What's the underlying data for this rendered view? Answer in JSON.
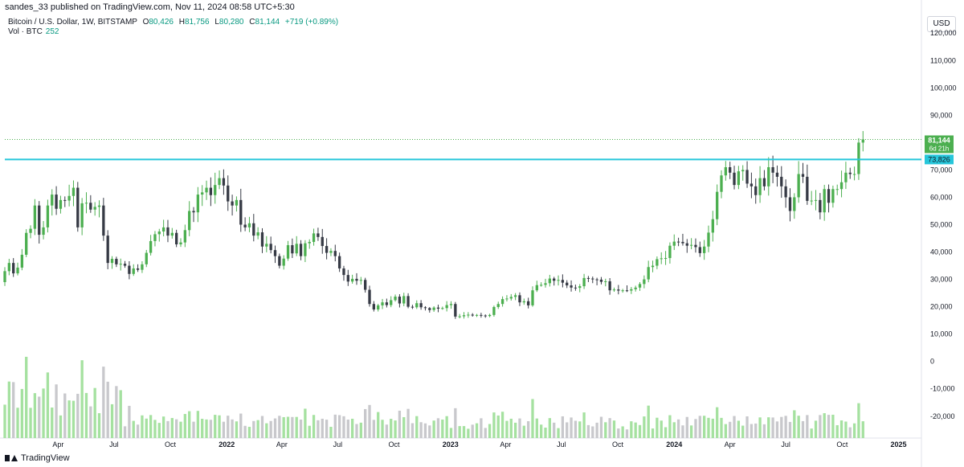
{
  "header": {
    "published": "sandes_33 published on TradingView.com, Nov 11, 2024 08:58 UTC+5:30",
    "symbol": "Bitcoin / U.S. Dollar, 1W, BITSTAMP",
    "o_label": "O",
    "o_val": "80,426",
    "h_label": "H",
    "h_val": "81,756",
    "l_label": "L",
    "l_val": "80,280",
    "c_label": "C",
    "c_val": "81,144",
    "change": "+719 (+0.89%)",
    "vol_label": "Vol · BTC",
    "vol_val": "252"
  },
  "currency_button": "USD",
  "footer": {
    "brand": "TradingView"
  },
  "colors": {
    "up": "#4caf50",
    "down": "#363a45",
    "vol_up": "#a5e1a0",
    "vol_down": "#c8c8cc",
    "last_price": "#4caf50",
    "level": "#26c6da",
    "text": "#131722"
  },
  "chart_data": {
    "type": "candlestick",
    "xlim": [
      "2021-01-04",
      "2024-12-30"
    ],
    "ylim": [
      -28000,
      128000
    ],
    "y_ticks": [
      "120,000",
      "110,000",
      "100,000",
      "90,000",
      "80,000",
      "70,000",
      "60,000",
      "50,000",
      "40,000",
      "30,000",
      "20,000",
      "10,000",
      "0",
      "-10,000",
      "-20,000"
    ],
    "y_tick_values": [
      120000,
      110000,
      100000,
      90000,
      80000,
      70000,
      60000,
      50000,
      40000,
      30000,
      20000,
      10000,
      0,
      -10000,
      -20000
    ],
    "x_ticks": [
      {
        "label": "Apr",
        "date": "2021-04-01"
      },
      {
        "label": "Jul",
        "date": "2021-07-01"
      },
      {
        "label": "Oct",
        "date": "2021-10-01"
      },
      {
        "label": "2022",
        "date": "2022-01-01",
        "bold": true
      },
      {
        "label": "Apr",
        "date": "2022-04-01"
      },
      {
        "label": "Jul",
        "date": "2022-07-01"
      },
      {
        "label": "Oct",
        "date": "2022-10-01"
      },
      {
        "label": "2023",
        "date": "2023-01-01",
        "bold": true
      },
      {
        "label": "Apr",
        "date": "2023-04-01"
      },
      {
        "label": "Jul",
        "date": "2023-07-01"
      },
      {
        "label": "Oct",
        "date": "2023-10-01"
      },
      {
        "label": "2024",
        "date": "2024-01-01",
        "bold": true
      },
      {
        "label": "Apr",
        "date": "2024-04-01"
      },
      {
        "label": "Jul",
        "date": "2024-07-01"
      },
      {
        "label": "Oct",
        "date": "2024-10-01"
      },
      {
        "label": "2025",
        "date": "2025-01-01",
        "bold": true
      }
    ],
    "last_price": {
      "value": 81144,
      "label": "81,144",
      "countdown": "6d 21h"
    },
    "horizontal_level": {
      "value": 73826,
      "label": "73,826"
    },
    "start_week": "2021-01-04",
    "close": [
      33000,
      36000,
      32200,
      34300,
      39000,
      47000,
      48500,
      57000,
      46300,
      49000,
      57000,
      61000,
      55800,
      59000,
      58800,
      60500,
      63500,
      49000,
      57800,
      58000,
      55500,
      56500,
      57000,
      46000,
      36000,
      37500,
      35500,
      35700,
      35000,
      32000,
      34000,
      33500,
      35500,
      39700,
      44000,
      46500,
      47500,
      49000,
      46000,
      47000,
      42800,
      43500,
      48000,
      55000,
      54500,
      61000,
      61800,
      63500,
      60800,
      64500,
      67000,
      64300,
      58500,
      57000,
      59000,
      50000,
      49000,
      50500,
      46000,
      47200,
      42000,
      43000,
      40700,
      38500,
      35000,
      37600,
      42500,
      39500,
      43000,
      38500,
      43200,
      43700,
      46800,
      45500,
      42200,
      39700,
      40400,
      38500,
      34000,
      31600,
      29200,
      30200,
      29500,
      29800,
      26200,
      21000,
      19000,
      20500,
      21600,
      20600,
      22400,
      23700,
      21200,
      23900,
      20000,
      19800,
      21300,
      19800,
      19500,
      18800,
      19700,
      19300,
      19500,
      20600,
      21000,
      16400,
      16500,
      16900,
      17100,
      16800,
      17000,
      16800,
      16600,
      17000,
      19900,
      21000,
      22800,
      23000,
      23600,
      24200,
      21600,
      22000,
      20500,
      26000,
      27900,
      28000,
      28600,
      30300,
      29500,
      29800,
      28800,
      27800,
      27000,
      26900,
      27500,
      30500,
      30300,
      30000,
      29900,
      29100,
      29300,
      26000,
      26300,
      25900,
      26000,
      25900,
      26400,
      27000,
      28300,
      30000,
      34500,
      35000,
      37400,
      37700,
      37800,
      42300,
      43800,
      43700,
      43200,
      42300,
      42600,
      41800,
      39600,
      42000,
      47100,
      52000,
      62000,
      68000,
      71000,
      69000,
      64500,
      69500,
      70000,
      65000,
      64000,
      60800,
      67000,
      64000,
      71000,
      69000,
      67500,
      64000,
      60000,
      55000,
      60000,
      68500,
      67500,
      58700,
      58800,
      59000,
      54500,
      63000,
      58000,
      63000,
      63000,
      65500,
      69000,
      68500,
      68500,
      80000,
      81144
    ]
  }
}
